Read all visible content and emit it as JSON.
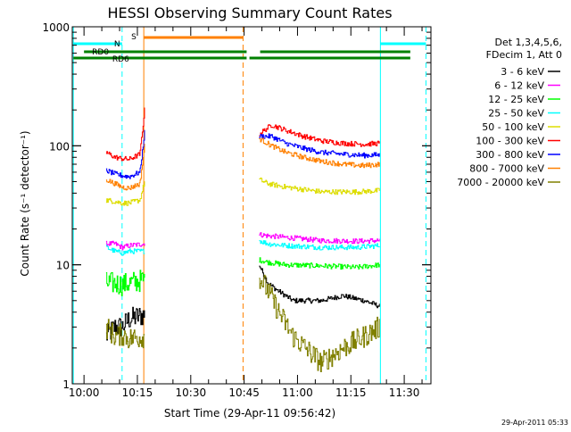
{
  "chart_data": {
    "type": "line",
    "title": "HESSI Observing Summary Count Rates",
    "xlabel": "Start Time (29-Apr-11 09:56:42)",
    "ylabel": "Count Rate (s⁻¹ detector⁻¹)",
    "ylog": true,
    "x_unit": "minutes since 09:56:42",
    "xlim": [
      0,
      100.8
    ],
    "ylim": [
      1,
      1000
    ],
    "x_ticks": [
      {
        "label": "10:00",
        "value": 3.3
      },
      {
        "label": "10:15",
        "value": 18.3
      },
      {
        "label": "10:30",
        "value": 33.3
      },
      {
        "label": "10:45",
        "value": 48.3
      },
      {
        "label": "11:00",
        "value": 63.3
      },
      {
        "label": "11:15",
        "value": 78.3
      },
      {
        "label": "11:30",
        "value": 93.3
      }
    ],
    "y_ticks": [
      {
        "label": "1",
        "value": 1
      },
      {
        "label": "10",
        "value": 10
      },
      {
        "label": "100",
        "value": 100
      },
      {
        "label": "1000",
        "value": 1000
      }
    ],
    "legend_header": [
      "Det 1,3,4,5,6,",
      "FDecim 1, Att 0"
    ],
    "series": [
      {
        "name": "3 - 6 keV",
        "color": "#000000",
        "seg1": [
          [
            9.5,
            2.5
          ],
          [
            12,
            3.0
          ],
          [
            14,
            3.0
          ],
          [
            16,
            3.5
          ],
          [
            20.3,
            3.8
          ]
        ],
        "seg2": [
          [
            52.5,
            10.0
          ],
          [
            55,
            7.0
          ],
          [
            58,
            6.0
          ],
          [
            62,
            5.0
          ],
          [
            70,
            5.0
          ],
          [
            76,
            5.5
          ],
          [
            82,
            5.0
          ],
          [
            86.3,
            4.5
          ]
        ]
      },
      {
        "name": "6 - 12 keV",
        "color": "#ff00ff",
        "seg1": [
          [
            9.5,
            15.0
          ],
          [
            12,
            15.0
          ],
          [
            14,
            14.0
          ],
          [
            16,
            14.5
          ],
          [
            20.3,
            15.0
          ]
        ],
        "seg2": [
          [
            52.5,
            18.0
          ],
          [
            55,
            17.5
          ],
          [
            60,
            17.0
          ],
          [
            70,
            16.0
          ],
          [
            80,
            15.8
          ],
          [
            86.3,
            16.0
          ]
        ]
      },
      {
        "name": "12 - 25 keV",
        "color": "#00ff00",
        "seg1": [
          [
            9.5,
            7.0
          ],
          [
            12,
            7.0
          ],
          [
            14,
            6.8
          ],
          [
            16,
            7.0
          ],
          [
            20.3,
            7.5
          ]
        ],
        "seg2": [
          [
            52.5,
            11.0
          ],
          [
            55,
            10.5
          ],
          [
            60,
            10.0
          ],
          [
            70,
            9.8
          ],
          [
            80,
            9.5
          ],
          [
            86.3,
            10.0
          ]
        ]
      },
      {
        "name": "25 - 50 keV",
        "color": "#00ffff",
        "seg1": [
          [
            9.5,
            14.0
          ],
          [
            12,
            13.0
          ],
          [
            14,
            12.5
          ],
          [
            16,
            13.0
          ],
          [
            20.3,
            13.0
          ]
        ],
        "seg2": [
          [
            52.5,
            16.0
          ],
          [
            55,
            15.0
          ],
          [
            60,
            14.5
          ],
          [
            70,
            14.0
          ],
          [
            80,
            14.0
          ],
          [
            86.3,
            14.5
          ]
        ]
      },
      {
        "name": "50 - 100 keV",
        "color": "#dddd00",
        "seg1": [
          [
            9.5,
            35.0
          ],
          [
            12,
            34.0
          ],
          [
            14,
            33.0
          ],
          [
            16,
            33.0
          ],
          [
            19,
            35.0
          ],
          [
            20.3,
            50.0
          ]
        ],
        "seg2": [
          [
            52.5,
            52.0
          ],
          [
            55,
            48.0
          ],
          [
            60,
            45.0
          ],
          [
            70,
            41.0
          ],
          [
            80,
            41.0
          ],
          [
            86.3,
            42.0
          ]
        ]
      },
      {
        "name": "100 - 300 keV",
        "color": "#ff0000",
        "seg1": [
          [
            9.5,
            88.0
          ],
          [
            12,
            80.0
          ],
          [
            14,
            78.0
          ],
          [
            16,
            77.0
          ],
          [
            19,
            85.0
          ],
          [
            20.3,
            200.0
          ]
        ],
        "seg2": [
          [
            52.5,
            125.0
          ],
          [
            56,
            150.0
          ],
          [
            60,
            135.0
          ],
          [
            65,
            120.0
          ],
          [
            70,
            110.0
          ],
          [
            76,
            105.0
          ],
          [
            82,
            103.0
          ],
          [
            86.3,
            105.0
          ]
        ]
      },
      {
        "name": "300 - 800 keV",
        "color": "#0000ff",
        "seg1": [
          [
            9.5,
            62.0
          ],
          [
            12,
            58.0
          ],
          [
            14,
            56.0
          ],
          [
            16,
            55.0
          ],
          [
            19,
            60.0
          ],
          [
            20.3,
            130.0
          ]
        ],
        "seg2": [
          [
            52.5,
            120.0
          ],
          [
            56,
            120.0
          ],
          [
            60,
            105.0
          ],
          [
            65,
            95.0
          ],
          [
            70,
            88.0
          ],
          [
            76,
            85.0
          ],
          [
            82,
            83.0
          ],
          [
            86.3,
            84.0
          ]
        ]
      },
      {
        "name": "800 - 7000 keV",
        "color": "#ff8000",
        "seg1": [
          [
            9.5,
            52.0
          ],
          [
            12,
            48.0
          ],
          [
            14,
            45.0
          ],
          [
            16,
            44.0
          ],
          [
            19,
            48.0
          ],
          [
            20.3,
            100.0
          ]
        ],
        "seg2": [
          [
            52.5,
            115.0
          ],
          [
            56,
            100.0
          ],
          [
            60,
            88.0
          ],
          [
            65,
            80.0
          ],
          [
            70,
            74.0
          ],
          [
            76,
            70.0
          ],
          [
            82,
            68.0
          ],
          [
            86.3,
            70.0
          ]
        ]
      },
      {
        "name": "7000 - 20000 keV",
        "color": "#808000",
        "seg1": [
          [
            9.5,
            3.0
          ],
          [
            12,
            2.5
          ],
          [
            14,
            2.6
          ],
          [
            16,
            2.4
          ],
          [
            20.3,
            2.5
          ]
        ],
        "seg2": [
          [
            52.5,
            8.0
          ],
          [
            55,
            6.0
          ],
          [
            58,
            4.0
          ],
          [
            62,
            2.5
          ],
          [
            70,
            1.5
          ],
          [
            76,
            2.0
          ],
          [
            82,
            2.5
          ],
          [
            86.3,
            3.0
          ]
        ]
      }
    ],
    "state_bars": [
      {
        "label": "N",
        "color": "#00ffff",
        "segments": [
          [
            0.3,
            14.0
          ],
          [
            86.6,
            99.4
          ]
        ]
      },
      {
        "label": "S",
        "color": "#ff8000",
        "segments": [
          [
            20.1,
            48.0
          ]
        ]
      },
      {
        "label": "RD0",
        "color": "#008000",
        "segments": [
          [
            3.3,
            49.0
          ],
          [
            52.8,
            95.0
          ]
        ]
      },
      {
        "label": "RD6",
        "color": "#008000",
        "segments": [
          [
            0.3,
            49.0
          ],
          [
            49.8,
            95.0
          ]
        ]
      }
    ],
    "vertical_lines": [
      {
        "value": 0.3,
        "color": "#00ffff",
        "style": "solid"
      },
      {
        "value": 14.0,
        "color": "#00ffff",
        "style": "dashed"
      },
      {
        "value": 20.1,
        "color": "#ff8000",
        "style": "solid"
      },
      {
        "value": 48.0,
        "color": "#ff8000",
        "style": "dashed"
      },
      {
        "value": 86.6,
        "color": "#00ffff",
        "style": "solid"
      },
      {
        "value": 99.4,
        "color": "#00ffff",
        "style": "dashed"
      }
    ],
    "footer": "29-Apr-2011 05:33"
  }
}
